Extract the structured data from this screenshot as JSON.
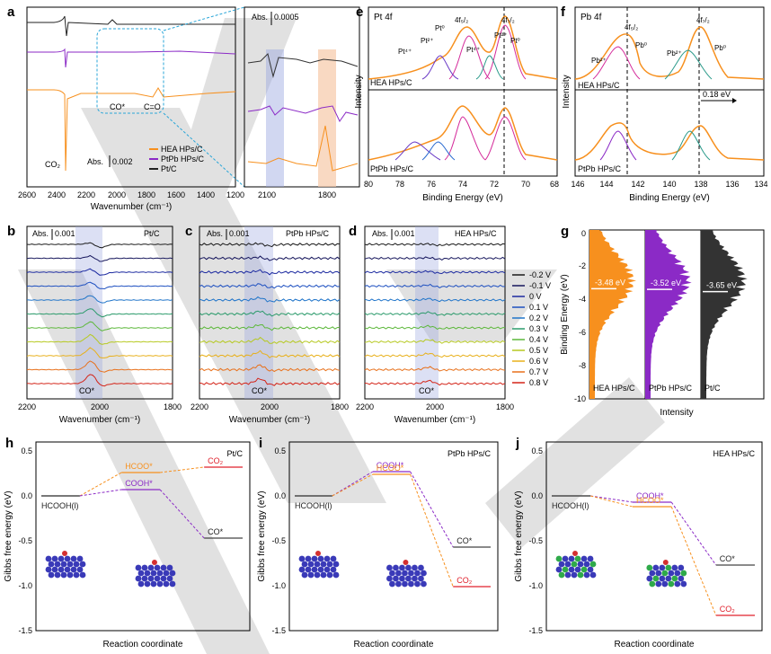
{
  "figure_title": "Multi-panel figure: in-situ ATR-SEIRAS, XPS, d-band centers and DFT free energy diagrams",
  "colors": {
    "hea": "#f7901e",
    "ptpb": "#8b2ac6",
    "ptc": "#222222",
    "band": "#9aa6e0",
    "band_orange": "#f6c9a8",
    "dash_blue": "#2aa6d8",
    "dft_orange": "#f7901e",
    "dft_purple": "#8b2ac6",
    "dft_red": "#e0202c",
    "watermark": "#b8b8b8"
  },
  "panels": {
    "a": {
      "label": "a",
      "xlabel": "Wavenumber (cm⁻¹)",
      "ticks": [
        "2600",
        "2400",
        "2200",
        "2000",
        "1800",
        "1600",
        "1400",
        "1200"
      ],
      "annotations": {
        "co2": "CO₂",
        "co_ad": "CO*",
        "c_o": "C=O",
        "scale": "Abs.",
        "scale_value": "0.002"
      },
      "legend": [
        "HEA HPs/C",
        "PtPb HPs/C",
        "Pt/C"
      ],
      "inset": {
        "scale": "Abs.",
        "scale_value": "0.0005",
        "ticks": [
          "2100",
          "1800"
        ]
      }
    },
    "b": {
      "label": "b",
      "title": "Pt/C",
      "scale": "Abs.",
      "scale_value": "0.001",
      "ticks": [
        "2200",
        "2000",
        "1800"
      ],
      "band_label": "CO*",
      "xlabel": "Wavenumber (cm⁻¹)"
    },
    "c": {
      "label": "c",
      "title": "PtPb HPs/C",
      "scale": "Abs.",
      "scale_value": "0.001",
      "ticks": [
        "2200",
        "2000",
        "1800"
      ],
      "band_label": "CO*",
      "xlabel": "Wavenumber (cm⁻¹)"
    },
    "d": {
      "label": "d",
      "title": "HEA HPs/C",
      "scale": "Abs.",
      "scale_value": "0.001",
      "ticks": [
        "2200",
        "2000",
        "1800"
      ],
      "band_label": "CO*",
      "xlabel": "Wavenumber (cm⁻¹)"
    },
    "potential_legend": {
      "labels": [
        "-0.2 V",
        "-0.1 V",
        "0 V",
        "0.1 V",
        "0.2 V",
        "0.3 V",
        "0.4 V",
        "0.5 V",
        "0.6 V",
        "0.7 V",
        "0.8 V"
      ],
      "colors": [
        "#1a1a1a",
        "#16165c",
        "#1c2aa0",
        "#1d4fc0",
        "#1f74c9",
        "#2a9a6a",
        "#5cb83a",
        "#b6c920",
        "#e8b01a",
        "#e8701a",
        "#d42418"
      ]
    },
    "e": {
      "label": "e",
      "title": "Pt 4f",
      "xlabel": "Binding Energy (eV)",
      "ylabel": "Intensity",
      "ticks": [
        "80",
        "78",
        "76",
        "74",
        "72",
        "70",
        "68"
      ],
      "peaks": [
        "Pt⁴⁺",
        "Pt²⁺",
        "Pt⁰",
        "4f₅/₂",
        "Pt²⁺",
        "Pt⁴⁺",
        "4f₇/₂",
        "Pt⁰"
      ],
      "samples": [
        "HEA HPs/C",
        "PtPb HPs/C"
      ]
    },
    "f": {
      "label": "f",
      "title": "Pb 4f",
      "xlabel": "Binding Energy (eV)",
      "ylabel": "Intensity",
      "ticks": [
        "146",
        "144",
        "142",
        "140",
        "138",
        "136",
        "134"
      ],
      "peaks": [
        "4f₅/₂",
        "Pb²⁺",
        "Pb⁰",
        "4f₇/₂",
        "Pb²⁺",
        "Pb⁰"
      ],
      "shift": "0.18 eV",
      "samples": [
        "HEA HPs/C",
        "PtPb HPs/C"
      ]
    },
    "g": {
      "label": "g",
      "ylabel": "Binding Energy (eV)",
      "xlabel": "Intensity",
      "ticks": [
        "0",
        "-2",
        "-4",
        "-6",
        "-8",
        "-10"
      ],
      "dband": [
        "-3.48 eV",
        "-3.52 eV",
        "-3.65 eV"
      ],
      "samples": [
        "HEA HPs/C",
        "PtPb HPs/C",
        "Pt/C"
      ]
    },
    "h": {
      "label": "h",
      "title": "Pt/C",
      "ylabel": "Gibbs free energy (eV)",
      "xlabel": "Reaction coordinate",
      "ticks": [
        "0.5",
        "0.0",
        "-0.5",
        "-1.0",
        "-1.5"
      ],
      "species": [
        "HCOOH(l)",
        "HCOO*",
        "COOH*",
        "CO₂",
        "CO*"
      ]
    },
    "i": {
      "label": "i",
      "title": "PtPb HPs/C",
      "ylabel": "Gibbs free energy (eV)",
      "xlabel": "Reaction coordinate",
      "ticks": [
        "0.5",
        "0.0",
        "-0.5",
        "-1.0",
        "-1.5"
      ],
      "species": [
        "HCOOH(l)",
        "COOH*",
        "HCOO*",
        "CO*",
        "CO₂"
      ]
    },
    "j": {
      "label": "j",
      "title": "HEA HPs/C",
      "ylabel": "Gibbs free energy (eV)",
      "xlabel": "Reaction coordinate",
      "ticks": [
        "0.5",
        "0.0",
        "-0.5",
        "-1.0",
        "-1.5"
      ],
      "species": [
        "HCOOH(l)",
        "COOH*",
        "HCOO*",
        "CO*",
        "CO₂"
      ]
    }
  },
  "chart_data": [
    {
      "type": "line",
      "panel": "a",
      "title": "ATR-SEIRAS spectra",
      "xlabel": "Wavenumber (cm-1)",
      "xlim": [
        2600,
        1200
      ],
      "series": [
        {
          "name": "Pt/C",
          "features": [
            {
              "x": 2343,
              "label": "CO2"
            }
          ]
        },
        {
          "name": "PtPb HPs/C",
          "features": [
            {
              "x": 2343,
              "label": "CO2"
            }
          ]
        },
        {
          "name": "HEA HPs/C",
          "features": [
            {
              "x": 2343,
              "label": "CO2"
            },
            {
              "x": 2050,
              "label": "CO*"
            },
            {
              "x": 1720,
              "label": "C=O"
            }
          ]
        }
      ]
    },
    {
      "type": "line",
      "panel": "b",
      "title": "Pt/C",
      "xlim": [
        2200,
        1800
      ],
      "band_center": 2030,
      "potentials_V": [
        -0.2,
        -0.1,
        0,
        0.1,
        0.2,
        0.3,
        0.4,
        0.5,
        0.6,
        0.7,
        0.8
      ]
    },
    {
      "type": "line",
      "panel": "c",
      "title": "PtPb HPs/C",
      "xlim": [
        2200,
        1800
      ],
      "band_center": 2020,
      "potentials_V": [
        -0.2,
        -0.1,
        0,
        0.1,
        0.2,
        0.3,
        0.4,
        0.5,
        0.6,
        0.7,
        0.8
      ]
    },
    {
      "type": "line",
      "panel": "d",
      "title": "HEA HPs/C",
      "xlim": [
        2200,
        1800
      ],
      "band_center": 2020,
      "potentials_V": [
        -0.2,
        -0.1,
        0,
        0.1,
        0.2,
        0.3,
        0.4,
        0.5,
        0.6,
        0.7,
        0.8
      ]
    },
    {
      "type": "line",
      "panel": "e",
      "title": "Pt 4f XPS",
      "xlim": [
        80,
        68
      ],
      "peaks_eV": {
        "4f7/2": 71.1,
        "4f5/2": 74.4
      }
    },
    {
      "type": "line",
      "panel": "f",
      "title": "Pb 4f XPS",
      "xlim": [
        146,
        134
      ],
      "peaks_eV": {
        "4f7/2": 137.7,
        "4f5/2": 142.6
      },
      "shift_eV": 0.18
    },
    {
      "type": "area",
      "panel": "g",
      "title": "d-band centers",
      "ylim": [
        -10,
        0
      ],
      "dband_center_eV": {
        "HEA HPs/C": -3.48,
        "PtPb HPs/C": -3.52,
        "Pt/C": -3.65
      }
    },
    {
      "type": "line",
      "panel": "h",
      "title": "Pt/C",
      "ylim": [
        -1.5,
        0.5
      ],
      "pathways": [
        {
          "name": "HCOO* path",
          "values": {
            "HCOOH(l)": 0.0,
            "HCOO*": 0.26,
            "CO2": 0.32
          }
        },
        {
          "name": "COOH* path",
          "values": {
            "HCOOH(l)": 0.0,
            "COOH*": 0.07,
            "CO*": -0.47
          }
        }
      ]
    },
    {
      "type": "line",
      "panel": "i",
      "title": "PtPb HPs/C",
      "ylim": [
        -1.5,
        0.5
      ],
      "pathways": [
        {
          "name": "COOH* path",
          "values": {
            "HCOOH(l)": 0.0,
            "COOH*": 0.27,
            "CO*": -0.57
          }
        },
        {
          "name": "HCOO* path",
          "values": {
            "HCOOH(l)": 0.0,
            "HCOO*": 0.24,
            "CO2": -1.01
          }
        }
      ]
    },
    {
      "type": "line",
      "panel": "j",
      "title": "HEA HPs/C",
      "ylim": [
        -1.5,
        0.5
      ],
      "pathways": [
        {
          "name": "COOH* path",
          "values": {
            "HCOOH(l)": 0.0,
            "COOH*": -0.07,
            "CO*": -0.77
          }
        },
        {
          "name": "HCOO* path",
          "values": {
            "HCOOH(l)": 0.0,
            "HCOO*": -0.12,
            "CO2": -1.33
          }
        }
      ]
    }
  ]
}
